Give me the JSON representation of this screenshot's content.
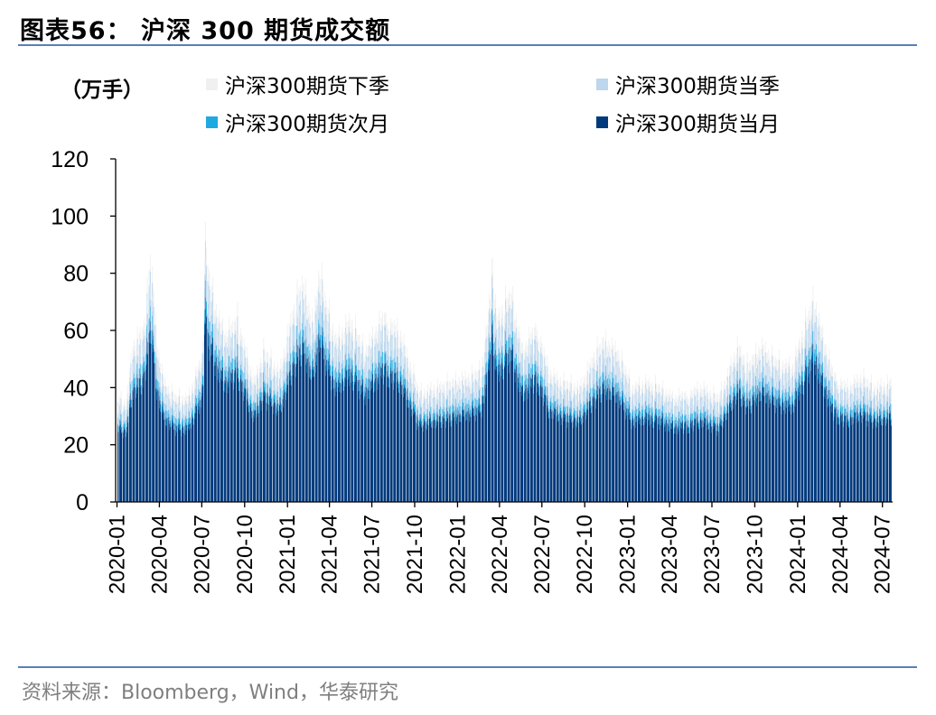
{
  "figure": {
    "title": "图表56： 沪深 300 期货成交额",
    "source": "资料来源：Bloomberg，Wind，华泰研究"
  },
  "chart_data": {
    "type": "bar",
    "stacked": true,
    "unit_label": "（万手）",
    "ylim": [
      0,
      120
    ],
    "yticks": [
      0,
      20,
      40,
      60,
      80,
      100,
      120
    ],
    "xticks": [
      "2020-01",
      "2020-04",
      "2020-07",
      "2020-10",
      "2021-01",
      "2021-04",
      "2021-07",
      "2021-10",
      "2022-01",
      "2022-04",
      "2022-07",
      "2022-10",
      "2023-01",
      "2023-04",
      "2023-07",
      "2023-10",
      "2024-01",
      "2024-04",
      "2024-07"
    ],
    "x_range": [
      "2020-01-02",
      "2024-07-19"
    ],
    "frequency": "trading-day",
    "legend_position": "top",
    "series": [
      {
        "name": "沪深300期货下季",
        "color": "#f0f0f0",
        "share": 0.07
      },
      {
        "name": "沪深300期货当季",
        "color": "#bcd7ee",
        "share": 0.14
      },
      {
        "name": "沪深300期货次月",
        "color": "#1fa9e1",
        "share": 0.06
      },
      {
        "name": "沪深300期货当月",
        "color": "#003a7d",
        "share": 0.73
      }
    ],
    "total_anchors": [
      [
        "2020-01-02",
        40
      ],
      [
        "2020-01-20",
        38
      ],
      [
        "2020-02-03",
        60
      ],
      [
        "2020-02-25",
        66
      ],
      [
        "2020-03-06",
        80
      ],
      [
        "2020-03-13",
        96
      ],
      [
        "2020-03-25",
        62
      ],
      [
        "2020-04-10",
        46
      ],
      [
        "2020-05-06",
        40
      ],
      [
        "2020-06-01",
        40
      ],
      [
        "2020-07-01",
        56
      ],
      [
        "2020-07-07",
        100
      ],
      [
        "2020-07-16",
        86
      ],
      [
        "2020-08-03",
        72
      ],
      [
        "2020-08-20",
        64
      ],
      [
        "2020-09-15",
        70
      ],
      [
        "2020-10-20",
        46
      ],
      [
        "2020-11-10",
        58
      ],
      [
        "2020-12-15",
        50
      ],
      [
        "2021-01-10",
        72
      ],
      [
        "2021-02-01",
        84
      ],
      [
        "2021-02-25",
        68
      ],
      [
        "2021-03-10",
        90
      ],
      [
        "2021-03-25",
        75
      ],
      [
        "2021-04-15",
        62
      ],
      [
        "2021-05-15",
        70
      ],
      [
        "2021-06-15",
        58
      ],
      [
        "2021-07-28",
        72
      ],
      [
        "2021-09-01",
        64
      ],
      [
        "2021-10-10",
        42
      ],
      [
        "2021-11-15",
        44
      ],
      [
        "2021-12-20",
        46
      ],
      [
        "2022-01-20",
        48
      ],
      [
        "2022-02-20",
        50
      ],
      [
        "2022-03-10",
        76
      ],
      [
        "2022-03-15",
        94
      ],
      [
        "2022-03-25",
        70
      ],
      [
        "2022-04-25",
        80
      ],
      [
        "2022-05-20",
        58
      ],
      [
        "2022-06-20",
        68
      ],
      [
        "2022-07-15",
        50
      ],
      [
        "2022-08-15",
        46
      ],
      [
        "2022-09-20",
        44
      ],
      [
        "2022-10-20",
        56
      ],
      [
        "2022-11-10",
        62
      ],
      [
        "2022-12-10",
        58
      ],
      [
        "2023-01-10",
        44
      ],
      [
        "2023-02-10",
        46
      ],
      [
        "2023-03-10",
        44
      ],
      [
        "2023-04-10",
        40
      ],
      [
        "2023-05-10",
        42
      ],
      [
        "2023-06-10",
        44
      ],
      [
        "2023-07-15",
        40
      ],
      [
        "2023-08-25",
        60
      ],
      [
        "2023-09-15",
        52
      ],
      [
        "2023-10-15",
        60
      ],
      [
        "2023-11-15",
        54
      ],
      [
        "2023-12-20",
        52
      ],
      [
        "2024-01-20",
        70
      ],
      [
        "2024-02-05",
        78
      ],
      [
        "2024-02-20",
        66
      ],
      [
        "2024-03-15",
        50
      ],
      [
        "2024-04-15",
        44
      ],
      [
        "2024-05-15",
        48
      ],
      [
        "2024-06-15",
        44
      ],
      [
        "2024-07-19",
        46
      ]
    ]
  }
}
